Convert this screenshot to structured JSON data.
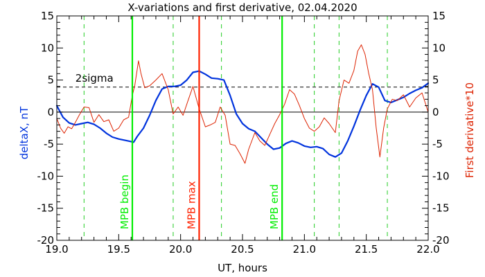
{
  "chart_data": {
    "type": "line",
    "title": "X-variations and first derivative, 02.04.2020",
    "xlabel": "UT, hours",
    "ylabel_left": "deltaX, nT",
    "ylabel_right": "First derivative*10",
    "xlim": [
      19.0,
      22.0
    ],
    "ylim": [
      -20,
      15
    ],
    "xticks": [
      "19.0",
      "19.5",
      "20.0",
      "20.5",
      "21.0",
      "21.5",
      "22.0"
    ],
    "xtick_values": [
      19.0,
      19.5,
      20.0,
      20.5,
      21.0,
      21.5,
      22.0
    ],
    "yticks_left": [
      "-20",
      "-15",
      "-10",
      "-5",
      "0",
      "5",
      "10",
      "15"
    ],
    "yticks_right": [
      "-20",
      "-15",
      "-10",
      "-5",
      "0",
      "5",
      "10",
      "15"
    ],
    "ytick_values": [
      -20,
      -15,
      -10,
      -5,
      0,
      5,
      10,
      15
    ],
    "threshold": {
      "label": "2sigma",
      "value": 3.9,
      "style": "dashed",
      "color": "#000000"
    },
    "zero_line": 0,
    "green_dashed_lines": [
      19.22,
      19.94,
      20.33,
      21.08,
      21.28,
      21.67
    ],
    "markers": [
      {
        "label": "MPB begin",
        "x": 19.61,
        "color": "#00ee00"
      },
      {
        "label": "MPB max",
        "x": 20.15,
        "color": "#ff2200"
      },
      {
        "label": "MPB end",
        "x": 20.82,
        "color": "#00ee00"
      }
    ],
    "series": [
      {
        "name": "deltaX, nT",
        "axis": "left",
        "color": "#0033dd",
        "x": [
          19.0,
          19.05,
          19.1,
          19.15,
          19.2,
          19.25,
          19.3,
          19.35,
          19.4,
          19.45,
          19.5,
          19.55,
          19.6,
          19.62,
          19.65,
          19.7,
          19.75,
          19.8,
          19.85,
          19.9,
          19.95,
          20.0,
          20.05,
          20.1,
          20.15,
          20.2,
          20.25,
          20.3,
          20.35,
          20.4,
          20.45,
          20.5,
          20.55,
          20.6,
          20.65,
          20.7,
          20.75,
          20.8,
          20.85,
          20.9,
          20.95,
          21.0,
          21.05,
          21.1,
          21.15,
          21.2,
          21.25,
          21.3,
          21.35,
          21.4,
          21.45,
          21.5,
          21.55,
          21.6,
          21.65,
          21.7,
          21.75,
          21.8,
          21.85,
          21.9,
          21.95,
          22.0
        ],
        "values": [
          1.0,
          -0.8,
          -1.7,
          -2.0,
          -1.8,
          -1.6,
          -1.9,
          -2.5,
          -3.3,
          -3.9,
          -4.2,
          -4.4,
          -4.6,
          -4.7,
          -3.8,
          -2.5,
          -0.5,
          1.8,
          3.6,
          4.0,
          4.0,
          4.2,
          5.0,
          6.2,
          6.4,
          5.9,
          5.3,
          5.2,
          5.0,
          2.6,
          -0.3,
          -1.8,
          -2.6,
          -3.0,
          -4.0,
          -5.0,
          -5.8,
          -5.6,
          -4.9,
          -4.5,
          -4.8,
          -5.3,
          -5.5,
          -5.4,
          -5.7,
          -6.6,
          -7.0,
          -6.4,
          -4.5,
          -2.2,
          0.3,
          2.6,
          4.4,
          3.9,
          1.8,
          1.5,
          1.9,
          2.3,
          2.9,
          3.4,
          3.8,
          4.5
        ]
      },
      {
        "name": "First derivative*10",
        "axis": "right",
        "color": "#dd2200",
        "x": [
          19.0,
          19.03,
          19.06,
          19.09,
          19.12,
          19.15,
          19.18,
          19.22,
          19.26,
          19.3,
          19.34,
          19.38,
          19.42,
          19.46,
          19.5,
          19.54,
          19.58,
          19.61,
          19.63,
          19.66,
          19.68,
          19.71,
          19.75,
          19.8,
          19.85,
          19.9,
          19.94,
          19.98,
          20.02,
          20.06,
          20.1,
          20.15,
          20.2,
          20.24,
          20.28,
          20.32,
          20.36,
          20.4,
          20.44,
          20.48,
          20.52,
          20.55,
          20.6,
          20.64,
          20.68,
          20.72,
          20.76,
          20.8,
          20.84,
          20.88,
          20.92,
          20.96,
          21.0,
          21.04,
          21.08,
          21.12,
          21.16,
          21.2,
          21.25,
          21.28,
          21.32,
          21.36,
          21.4,
          21.43,
          21.46,
          21.49,
          21.52,
          21.55,
          21.58,
          21.61,
          21.64,
          21.67,
          21.71,
          21.75,
          21.8,
          21.85,
          21.9,
          21.95,
          22.0
        ],
        "values": [
          -1.0,
          -2.5,
          -3.3,
          -2.3,
          -2.6,
          -1.6,
          -0.5,
          0.8,
          0.7,
          -1.6,
          -0.4,
          -1.5,
          -1.2,
          -3.0,
          -2.5,
          -1.2,
          -0.8,
          2.6,
          4.2,
          8.0,
          6.0,
          3.8,
          4.1,
          5.0,
          6.0,
          3.5,
          -0.3,
          0.8,
          -0.5,
          1.8,
          4.0,
          0.5,
          -2.3,
          -2.0,
          -1.6,
          0.8,
          -0.5,
          -5.0,
          -5.2,
          -6.5,
          -8.0,
          -5.8,
          -3.2,
          -4.5,
          -5.2,
          -3.5,
          -1.8,
          -0.4,
          1.2,
          3.5,
          2.8,
          1.0,
          -1.0,
          -2.5,
          -3.0,
          -2.3,
          -0.9,
          -1.8,
          -3.2,
          1.8,
          5.0,
          4.5,
          6.5,
          9.5,
          10.5,
          9.0,
          6.0,
          3.5,
          -2.5,
          -7.0,
          -2.5,
          0.5,
          2.0,
          1.8,
          2.7,
          0.8,
          2.2,
          3.0,
          0.0
        ]
      }
    ]
  }
}
